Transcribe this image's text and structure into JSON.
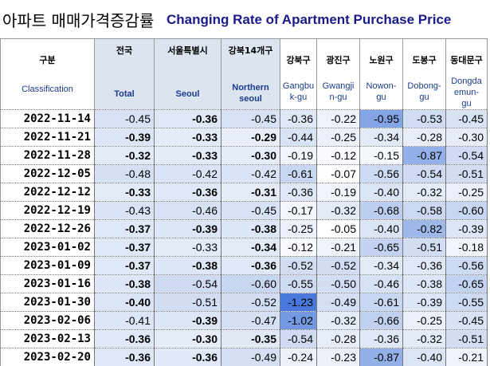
{
  "title": {
    "korean": "아파트 매매가격증감률",
    "english": "Changing Rate of Apartment Purchase Price"
  },
  "colors": {
    "title_blue": "#1a1a8c",
    "header_blue": "#1a3a8c"
  },
  "columns": [
    {
      "ko": "구분",
      "en": "Classification"
    },
    {
      "ko": "전국",
      "en": "Total"
    },
    {
      "ko": "서울특별시",
      "en": "Seoul"
    },
    {
      "ko": "강북14개구",
      "en": "Northern seoul"
    },
    {
      "ko": "강북구",
      "en": "Gangbuk-gu"
    },
    {
      "ko": "광진구",
      "en": "Gwangjin-gu"
    },
    {
      "ko": "노원구",
      "en": "Nowon-gu"
    },
    {
      "ko": "도봉구",
      "en": "Dobong-gu"
    },
    {
      "ko": "동대문구",
      "en": "Dongdaemun-gu"
    }
  ],
  "header_lines": {
    "c3": [
      "Northern",
      "seoul"
    ],
    "c4": [
      "Gangbu",
      "k-gu"
    ],
    "c5": [
      "Gwangji",
      "n-gu"
    ],
    "c6": [
      "Nowon-",
      "gu"
    ],
    "c7": [
      "Dobong-",
      "gu"
    ],
    "c8": [
      "Dongda",
      "emun-",
      "gu"
    ]
  },
  "rows": [
    {
      "date": "2022-11-14",
      "values": [
        "-0.45",
        "-0.36",
        "-0.45",
        "-0.36",
        "-0.22",
        "-0.95",
        "-0.53",
        "-0.45"
      ]
    },
    {
      "date": "2022-11-21",
      "values": [
        "-0.39",
        "-0.33",
        "-0.29",
        "-0.44",
        "-0.25",
        "-0.34",
        "-0.28",
        "-0.30"
      ]
    },
    {
      "date": "2022-11-28",
      "values": [
        "-0.32",
        "-0.33",
        "-0.30",
        "-0.19",
        "-0.12",
        "-0.15",
        "-0.87",
        "-0.54"
      ]
    },
    {
      "date": "2022-12-05",
      "values": [
        "-0.48",
        "-0.42",
        "-0.42",
        "-0.61",
        "-0.07",
        "-0.56",
        "-0.54",
        "-0.51"
      ]
    },
    {
      "date": "2022-12-12",
      "values": [
        "-0.33",
        "-0.36",
        "-0.31",
        "-0.36",
        "-0.19",
        "-0.40",
        "-0.32",
        "-0.25"
      ]
    },
    {
      "date": "2022-12-19",
      "values": [
        "-0.43",
        "-0.46",
        "-0.45",
        "-0.17",
        "-0.32",
        "-0.68",
        "-0.58",
        "-0.60"
      ]
    },
    {
      "date": "2022-12-26",
      "values": [
        "-0.37",
        "-0.39",
        "-0.38",
        "-0.25",
        "-0.05",
        "-0.40",
        "-0.82",
        "-0.39"
      ]
    },
    {
      "date": "2023-01-02",
      "values": [
        "-0.37",
        "-0.33",
        "-0.34",
        "-0.12",
        "-0.21",
        "-0.65",
        "-0.51",
        "-0.18"
      ]
    },
    {
      "date": "2023-01-09",
      "values": [
        "-0.37",
        "-0.38",
        "-0.36",
        "-0.52",
        "-0.52",
        "-0.34",
        "-0.36",
        "-0.56"
      ]
    },
    {
      "date": "2023-01-16",
      "values": [
        "-0.38",
        "-0.54",
        "-0.60",
        "-0.55",
        "-0.50",
        "-0.46",
        "-0.38",
        "-0.65"
      ]
    },
    {
      "date": "2023-01-30",
      "values": [
        "-0.40",
        "-0.51",
        "-0.52",
        "-1.23",
        "-0.49",
        "-0.61",
        "-0.39",
        "-0.55"
      ]
    },
    {
      "date": "2023-02-06",
      "values": [
        "-0.41",
        "-0.39",
        "-0.47",
        "-1.02",
        "-0.32",
        "-0.66",
        "-0.25",
        "-0.45"
      ]
    },
    {
      "date": "2023-02-13",
      "values": [
        "-0.36",
        "-0.30",
        "-0.35",
        "-0.54",
        "-0.28",
        "-0.36",
        "-0.32",
        "-0.51"
      ]
    },
    {
      "date": "2023-02-20",
      "values": [
        "-0.36",
        "-0.36",
        "-0.49",
        "-0.24",
        "-0.23",
        "-0.87",
        "-0.40",
        "-0.21"
      ]
    }
  ]
}
